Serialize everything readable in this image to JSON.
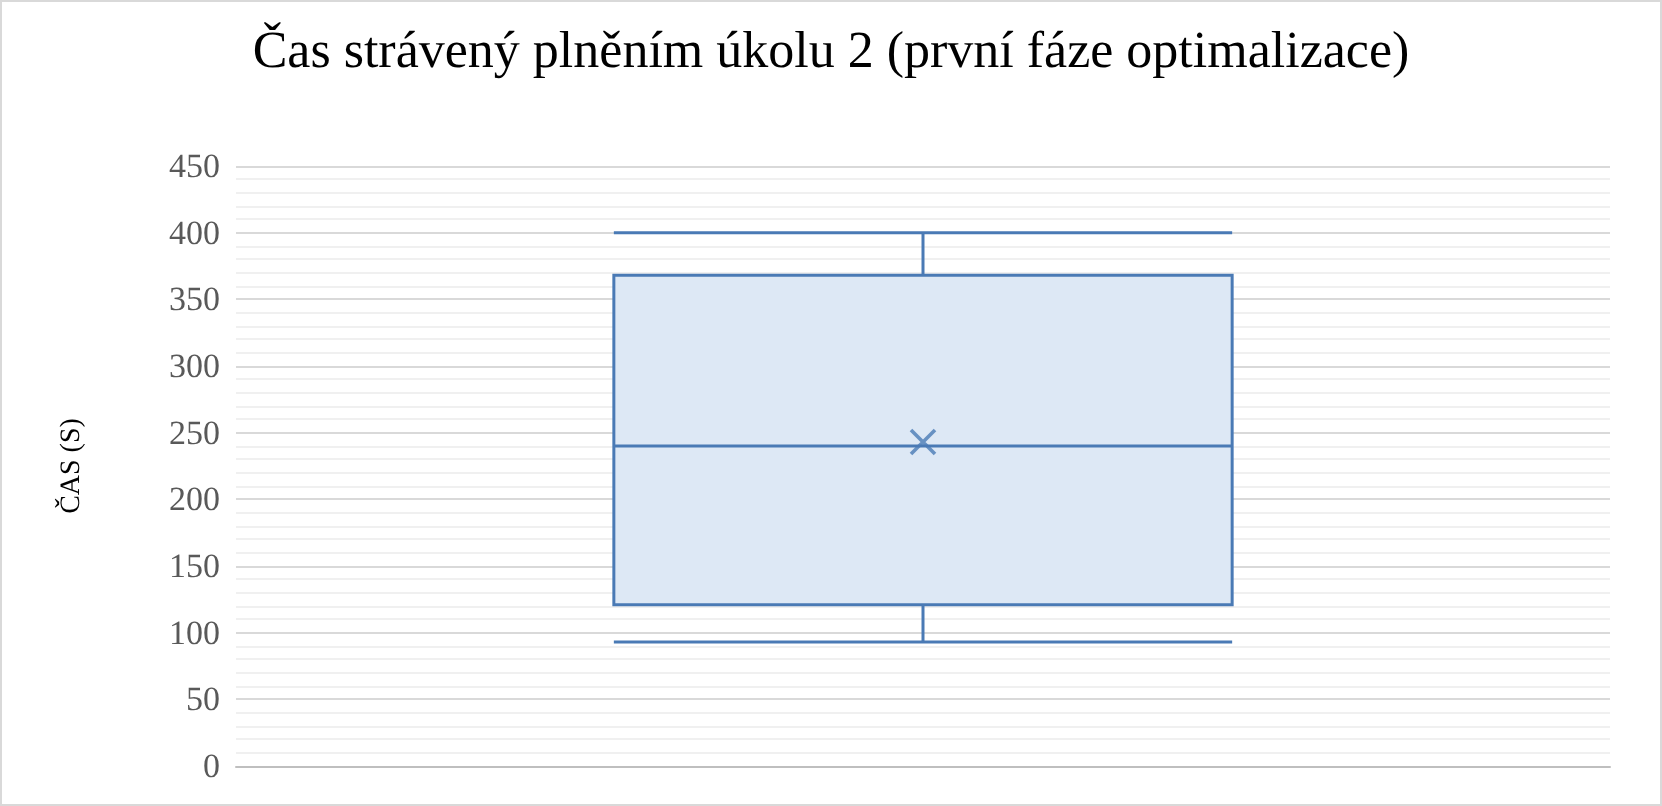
{
  "chart_data": {
    "type": "box",
    "title": "Čas strávený plněním úkolu 2 (první fáze optimalizace)",
    "ylabel": "ČAS (S)",
    "categories": [
      null
    ],
    "series": [
      {
        "color": "#4a7ab5",
        "boxes": [
          {
            "low": 93,
            "q1": 121,
            "median": 240,
            "q3": 368,
            "high": 400,
            "mean": 243
          }
        ]
      }
    ],
    "ylim": [
      0,
      450
    ],
    "yticks": [
      0,
      50,
      100,
      150,
      200,
      250,
      300,
      350,
      400,
      450
    ],
    "grid": "y",
    "marker": "cross"
  }
}
